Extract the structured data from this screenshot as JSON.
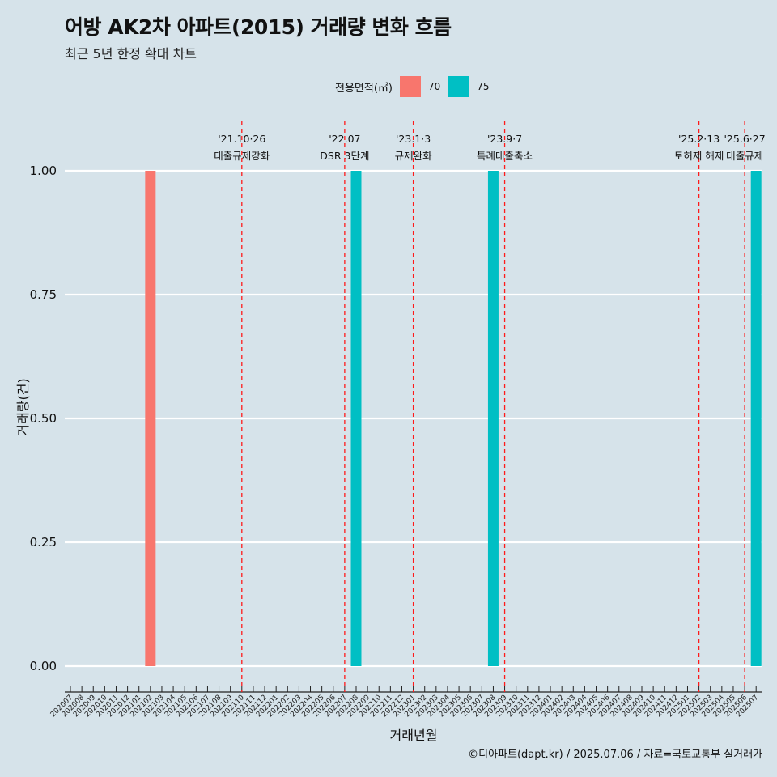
{
  "title": "어방 AK2차 아파트(2015) 거래량 변화 흐름",
  "subtitle": "최근 5년 한정 확대 차트",
  "caption": "©디아파트(dapt.kr) / 2025.07.06 / 자료=국토교통부 실거래가",
  "legend": {
    "title": "전용면적(㎡)",
    "items": [
      {
        "label": "70",
        "color": "#f8766d"
      },
      {
        "label": "75",
        "color": "#00bfc4"
      }
    ]
  },
  "chart_data": {
    "type": "bar",
    "xlabel": "거래년월",
    "ylabel": "거래량(건)",
    "ylim": [
      0,
      1.0
    ],
    "yticks": [
      "0.00",
      "0.25",
      "0.50",
      "0.75",
      "1.00"
    ],
    "grid": true,
    "legend_position": "top",
    "categories": [
      "202007",
      "202008",
      "202009",
      "202010",
      "202011",
      "202012",
      "202101",
      "202102",
      "202103",
      "202104",
      "202105",
      "202106",
      "202107",
      "202108",
      "202109",
      "202110",
      "202111",
      "202112",
      "202201",
      "202202",
      "202203",
      "202204",
      "202205",
      "202206",
      "202207",
      "202208",
      "202209",
      "202210",
      "202211",
      "202212",
      "202301",
      "202302",
      "202303",
      "202304",
      "202305",
      "202306",
      "202307",
      "202308",
      "202309",
      "202310",
      "202311",
      "202312",
      "202401",
      "202402",
      "202403",
      "202404",
      "202405",
      "202406",
      "202407",
      "202408",
      "202409",
      "202410",
      "202411",
      "202412",
      "202501",
      "202502",
      "202503",
      "202504",
      "202505",
      "202506",
      "202507"
    ],
    "series": [
      {
        "name": "70",
        "color": "#f8766d",
        "points": [
          {
            "x": "202102",
            "value": 1
          }
        ]
      },
      {
        "name": "75",
        "color": "#00bfc4",
        "points": [
          {
            "x": "202208",
            "value": 1
          },
          {
            "x": "202308",
            "value": 1
          },
          {
            "x": "202507",
            "value": 1
          }
        ]
      }
    ],
    "annotations": [
      {
        "date": "'21.10·26",
        "label": "대출규제강화",
        "x": "202110"
      },
      {
        "date": "'22.07",
        "label": "DSR 3단계",
        "x": "202207"
      },
      {
        "date": "'23.1·3",
        "label": "규제완화",
        "x": "202301"
      },
      {
        "date": "'23.9·7",
        "label": "특례대출축소",
        "x": "202309"
      },
      {
        "date": "'25.2·13",
        "label": "토허제 해제",
        "x": "202502"
      },
      {
        "date": "'25.6·27",
        "label": "대출규제",
        "x": "202506"
      }
    ]
  }
}
